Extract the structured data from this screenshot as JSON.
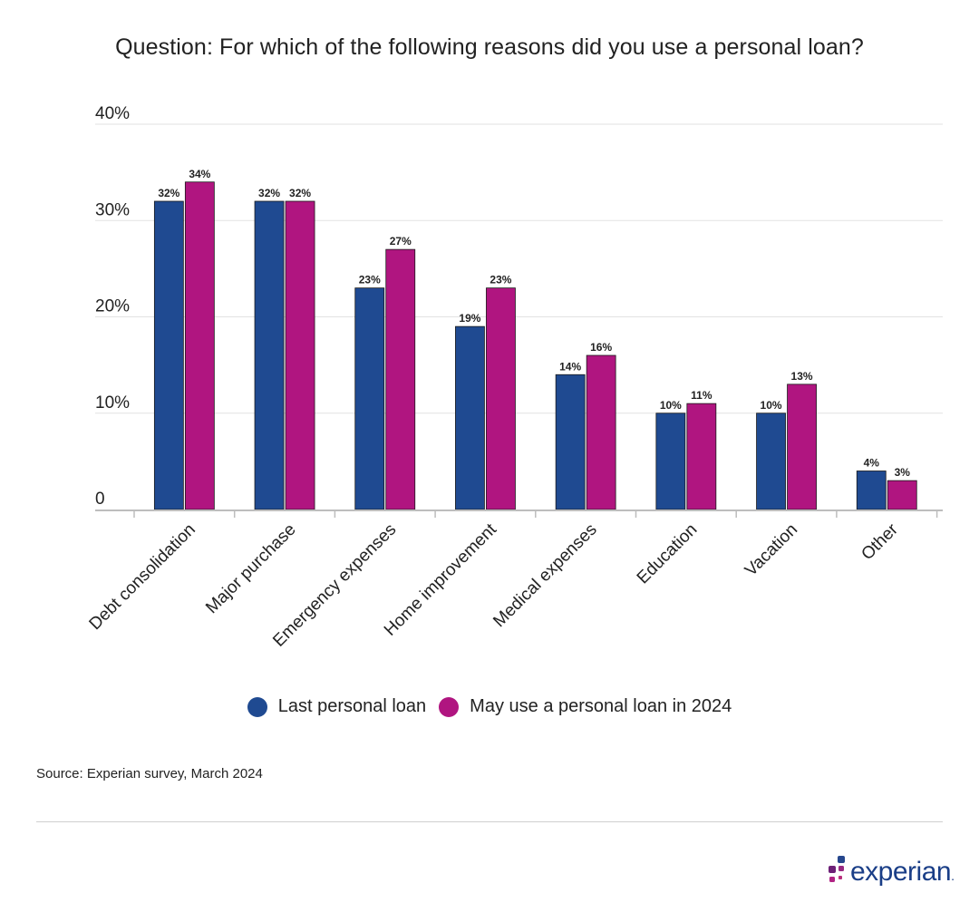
{
  "title": "Question: For which of the following reasons did you use a personal loan?",
  "source": "Source: Experian survey, March 2024",
  "logo_text": "experian",
  "logo_mark": ".",
  "colors": {
    "series1": "#1f4a91",
    "series2": "#b01580",
    "grid": "#e2e2e2",
    "axis": "#bdbdbd",
    "text": "#222222"
  },
  "chart_data": {
    "type": "bar",
    "categories": [
      "Debt consolidation",
      "Major purchase",
      "Emergency expenses",
      "Home improvement",
      "Medical expenses",
      "Education",
      "Vacation",
      "Other"
    ],
    "series": [
      {
        "name": "Last personal loan",
        "values": [
          32,
          32,
          23,
          19,
          14,
          10,
          10,
          4
        ]
      },
      {
        "name": "May use a personal loan in 2024",
        "values": [
          34,
          32,
          27,
          23,
          16,
          11,
          13,
          3
        ]
      }
    ],
    "ylim": [
      0,
      40
    ],
    "yticks": [
      {
        "value": 0,
        "label": "0"
      },
      {
        "value": 10,
        "label": "10%"
      },
      {
        "value": 20,
        "label": "20%"
      },
      {
        "value": 30,
        "label": "30%"
      },
      {
        "value": 40,
        "label": "40%"
      }
    ],
    "value_suffix": "%",
    "grid": true,
    "legend_position": "bottom"
  }
}
